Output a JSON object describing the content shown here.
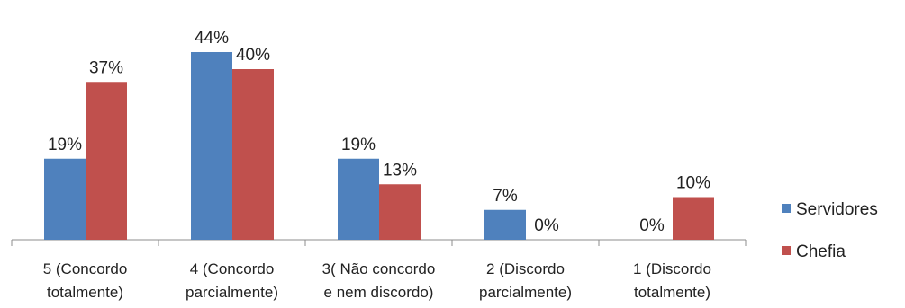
{
  "chart_data": {
    "type": "bar",
    "title": "",
    "xlabel": "",
    "ylabel": "",
    "ylim": [
      0,
      50
    ],
    "grid": false,
    "legend_position": "right",
    "categories": [
      [
        "5 (Concordo",
        "totalmente)"
      ],
      [
        "4 (Concordo",
        "parcialmente)"
      ],
      [
        "3( Não concordo",
        "e nem discordo)"
      ],
      [
        "2 (Discordo",
        "parcialmente)"
      ],
      [
        "1 (Discordo",
        "totalmente)"
      ]
    ],
    "series": [
      {
        "name": "Servidores",
        "color": "#4f81bd",
        "values": [
          19,
          44,
          19,
          7,
          0
        ],
        "labels": [
          "19%",
          "44%",
          "19%",
          "7%",
          "0%"
        ]
      },
      {
        "name": "Chefia",
        "color": "#c0504d",
        "values": [
          37,
          40,
          13,
          0,
          10
        ],
        "labels": [
          "37%",
          "40%",
          "13%",
          "0%",
          "10%"
        ]
      }
    ]
  }
}
